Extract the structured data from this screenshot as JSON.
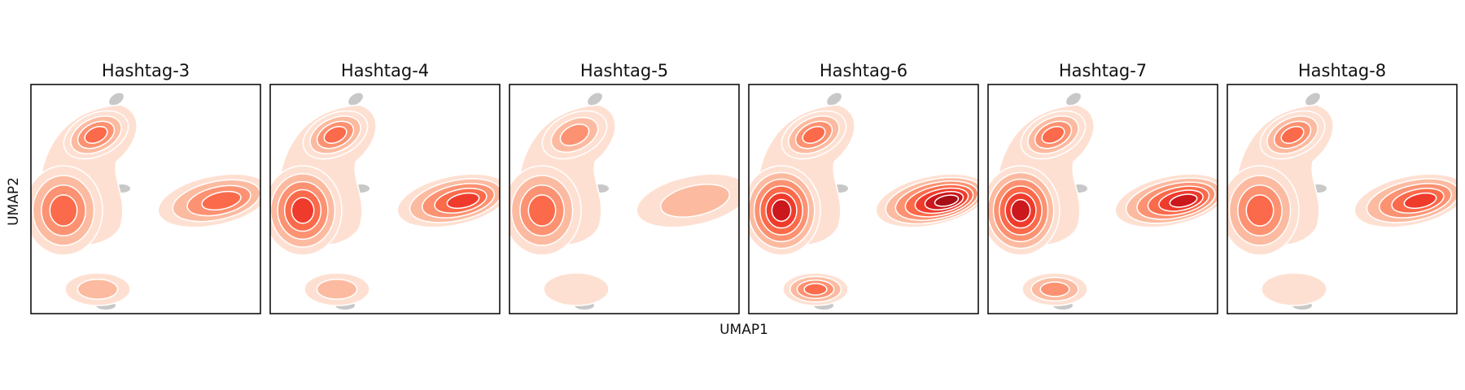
{
  "figure": {
    "xlabel": "UMAP1",
    "ylabel": "UMAP2"
  },
  "colors": {
    "background_points": "#c8c8c8",
    "contour_line": "#ffffff",
    "palette": "Reds",
    "levels": [
      "#fee0d2",
      "#fcbba1",
      "#fc9272",
      "#fb6a4a",
      "#ef3b2c",
      "#cb181d",
      "#a50f15"
    ],
    "panel_border": "#000000"
  },
  "chart_data": [
    {
      "type": "density",
      "title": "Hashtag-3",
      "xlabel": "",
      "ylabel": "",
      "grid": false,
      "peaks": [
        {
          "region": "upper-left",
          "level": 4
        },
        {
          "region": "middle-left",
          "level": 4
        },
        {
          "region": "right",
          "level": 4
        },
        {
          "region": "bottom",
          "level": 2
        }
      ]
    },
    {
      "type": "density",
      "title": "Hashtag-4",
      "xlabel": "",
      "ylabel": "",
      "grid": false,
      "peaks": [
        {
          "region": "upper-left",
          "level": 4
        },
        {
          "region": "middle-left",
          "level": 5
        },
        {
          "region": "right",
          "level": 5
        },
        {
          "region": "bottom",
          "level": 2
        }
      ]
    },
    {
      "type": "density",
      "title": "Hashtag-5",
      "xlabel": "",
      "ylabel": "",
      "grid": false,
      "peaks": [
        {
          "region": "upper-left",
          "level": 3
        },
        {
          "region": "middle-left",
          "level": 4
        },
        {
          "region": "right",
          "level": 2
        },
        {
          "region": "bottom",
          "level": 1
        }
      ]
    },
    {
      "type": "density",
      "title": "Hashtag-6",
      "xlabel": "",
      "ylabel": "",
      "grid": false,
      "peaks": [
        {
          "region": "upper-left",
          "level": 4
        },
        {
          "region": "middle-left",
          "level": 6
        },
        {
          "region": "right",
          "level": 7
        },
        {
          "region": "bottom",
          "level": 4
        }
      ]
    },
    {
      "type": "density",
      "title": "Hashtag-7",
      "xlabel": "",
      "ylabel": "",
      "grid": false,
      "peaks": [
        {
          "region": "upper-left",
          "level": 4
        },
        {
          "region": "middle-left",
          "level": 6
        },
        {
          "region": "right",
          "level": 6
        },
        {
          "region": "bottom",
          "level": 3
        }
      ]
    },
    {
      "type": "density",
      "title": "Hashtag-8",
      "xlabel": "",
      "ylabel": "",
      "grid": false,
      "peaks": [
        {
          "region": "upper-left",
          "level": 4
        },
        {
          "region": "middle-left",
          "level": 4
        },
        {
          "region": "right",
          "level": 5
        },
        {
          "region": "bottom",
          "level": 1
        }
      ]
    }
  ]
}
